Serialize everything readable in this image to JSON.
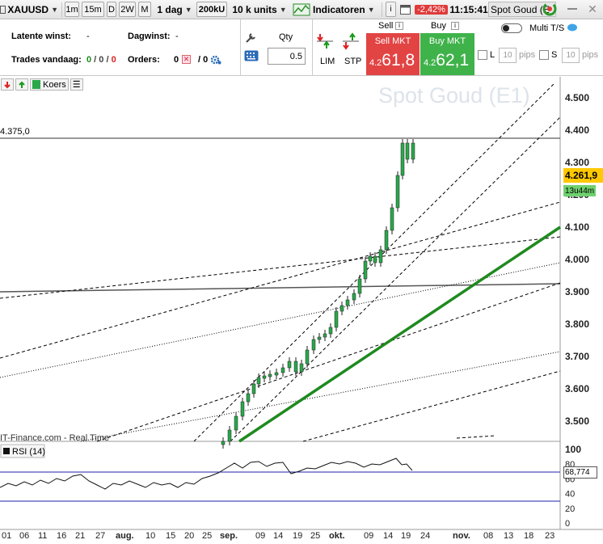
{
  "toolbar": {
    "symbol": "XAUUSD",
    "intervals": [
      "1m",
      "15m",
      "D",
      "2W",
      "M"
    ],
    "period": "1 dag",
    "amount_k": "200kU",
    "units": "10 k units",
    "indicators": "Indicatoren",
    "info": "i",
    "change": "-2,42%",
    "time": "11:15:41",
    "instrument": "Spot Goud (E"
  },
  "panel": {
    "latent_label": "Latente winst:",
    "latent_value": "-",
    "day_label": "Dagwinst:",
    "day_value": "-",
    "trades_label": "Trades vandaag:",
    "trades_value": "0 / 0 / 0",
    "orders_label": "Orders:",
    "orders_value_a": "0",
    "orders_value_b": "/ 0",
    "qty_label": "Qty",
    "qty_value": "0.5",
    "lim_label": "LIM",
    "stp_label": "STP",
    "sell_label": "Sell",
    "buy_label": "Buy",
    "sell_mkt": "Sell MKT",
    "buy_mkt": "Buy MKT",
    "sell_prefix": "4.2",
    "sell_price": "61,8",
    "buy_prefix": "4.2",
    "buy_price": "62,1",
    "multi_ts": "Multi T/S",
    "l_label": "L",
    "s_label": "S",
    "l_pips": "10",
    "s_pips": "10",
    "pips_label": "pips"
  },
  "chart": {
    "koers": "Koers",
    "watermark": "Spot Goud (E1)",
    "source": "IT-Finance.com - Real Time",
    "hline_value": "4.375,0",
    "last_price": "4.261,9",
    "countdown": "13u44m",
    "price_labels": [
      "4.500",
      "4.400",
      "4.300",
      "4.200",
      "4.100",
      "4.000",
      "3.900",
      "3.800",
      "3.700",
      "3.600",
      "3.500"
    ],
    "rsi_label": "RSI (14)",
    "rsi_value": "68,774",
    "rsi_labels": [
      "100",
      "80",
      "60",
      "40",
      "20",
      "0"
    ],
    "x_labels": [
      "01",
      "06",
      "11",
      "16",
      "21",
      "27",
      "aug.",
      "10",
      "15",
      "20",
      "25",
      "sep.",
      "09",
      "14",
      "19",
      "25",
      "okt.",
      "09",
      "14",
      "19",
      "24",
      "nov.",
      "08",
      "13",
      "18",
      "23"
    ]
  },
  "colors": {
    "sell": "#e24444",
    "buy": "#3fb24a",
    "price_tag": "#ffc800",
    "trendline": "#1f8a1f",
    "change_badge": "#e03a3a"
  }
}
